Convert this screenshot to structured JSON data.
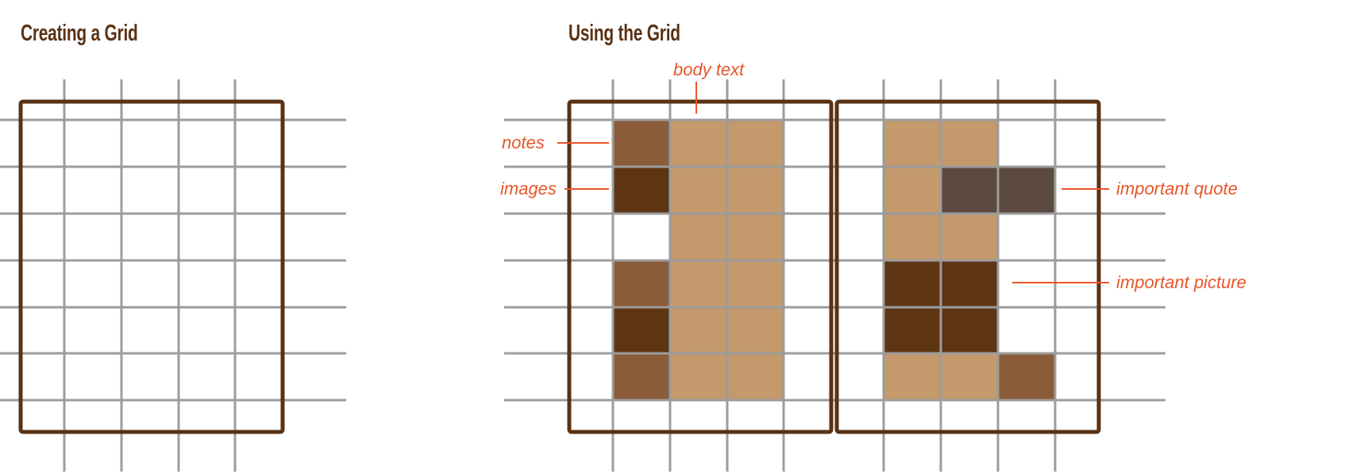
{
  "left_panel": {
    "title": "Creating a Grid"
  },
  "right_panel": {
    "title": "Using the Grid",
    "labels": {
      "body_text": "body text",
      "notes": "notes",
      "images": "images",
      "important_quote": "important quote",
      "important_picture": "important picture"
    }
  },
  "colors": {
    "frame": "#5a3214",
    "grid_line": "#9c9c9c",
    "annotation": "#e8562a",
    "body_text_fill": "#c4996b",
    "notes_fill": "#8b5c39",
    "images_fill": "#5e3513",
    "quote_fill": "#5c4a41"
  }
}
